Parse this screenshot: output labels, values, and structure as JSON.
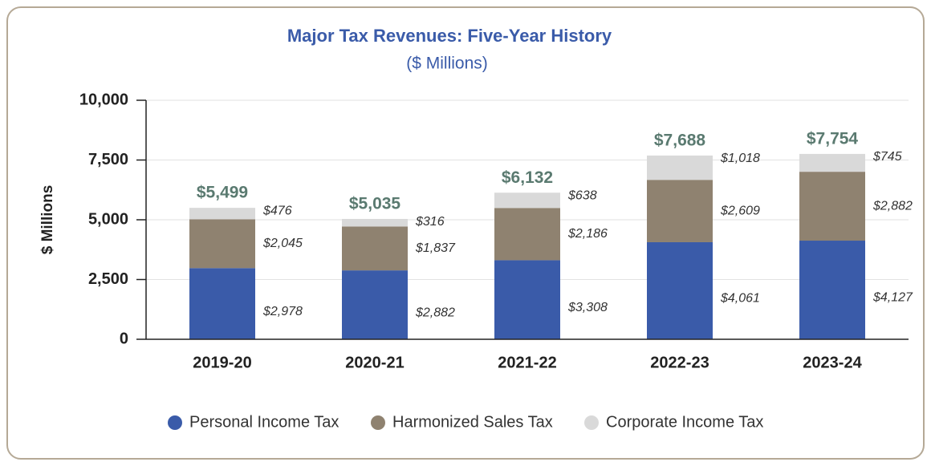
{
  "chart_data": {
    "type": "bar",
    "stacked": true,
    "title": "Major Tax Revenues:  Five-Year History",
    "subtitle": "($ Millions)",
    "y_label": "$ Millions",
    "categories": [
      "2019-20",
      "2020-21",
      "2021-22",
      "2022-23",
      "2023-24"
    ],
    "series": [
      {
        "name": "Personal Income Tax",
        "color": "#3a5ba9",
        "values": [
          2978,
          2882,
          3308,
          4061,
          4127
        ],
        "value_labels": [
          "$2,978",
          "$2,882",
          "$3,308",
          "$4,061",
          "$4,127"
        ]
      },
      {
        "name": "Harmonized Sales Tax",
        "color": "#8f8270",
        "values": [
          2045,
          1837,
          2186,
          2609,
          2882
        ],
        "value_labels": [
          "$2,045",
          "$1,837",
          "$2,186",
          "$2,609",
          "$2,882"
        ]
      },
      {
        "name": "Corporate Income Tax",
        "color": "#d9d9d9",
        "values": [
          476,
          316,
          638,
          1018,
          745
        ],
        "value_labels": [
          "$476",
          "$316",
          "$638",
          "$1,018",
          "$745"
        ]
      }
    ],
    "totals": [
      5499,
      5035,
      6132,
      7688,
      7754
    ],
    "total_labels": [
      "$5,499",
      "$5,035",
      "$6,132",
      "$7,688",
      "$7,754"
    ],
    "total_color": "#5a7a70",
    "ylim": [
      0,
      10000
    ],
    "yticks": [
      0,
      {
        "value": 2500,
        "label": "2,500"
      },
      {
        "value": 5000,
        "label": "5,000"
      },
      {
        "value": 7500,
        "label": "7,500"
      },
      {
        "value": 10000,
        "label": "10,000"
      }
    ],
    "grid": true,
    "legend": "bottom"
  }
}
